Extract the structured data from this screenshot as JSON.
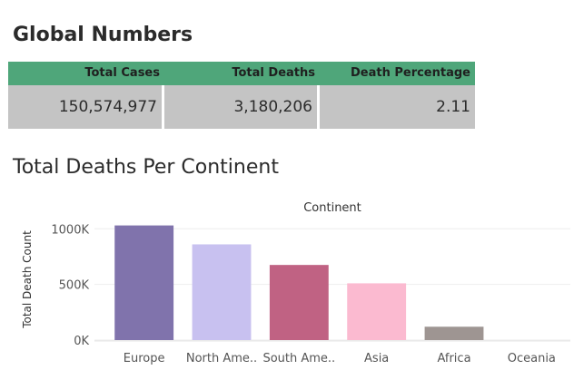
{
  "dashboard": {
    "title": "Global Numbers",
    "kpi": {
      "headers": [
        "Total Cases",
        "Total Deaths",
        "Death Percentage"
      ],
      "values": [
        "150,574,977",
        "3,180,206",
        "2.11"
      ]
    },
    "chart_title": "Total Deaths Per Continent"
  },
  "chart_data": {
    "type": "bar",
    "title": "Total Deaths Per Continent",
    "column_header": "Continent",
    "ylabel": "Total Death Count",
    "xlabel": "",
    "categories": [
      "Europe",
      "North Ame..",
      "South Ame..",
      "Asia",
      "Africa",
      "Oceania"
    ],
    "values": [
      1030000,
      860000,
      675000,
      510000,
      120000,
      1000
    ],
    "colors": [
      "#8073ac",
      "#c8c1f0",
      "#c06283",
      "#fbbad0",
      "#9e9592",
      "#cccccc"
    ],
    "ylim": [
      0,
      1100000
    ],
    "yticks": [
      0,
      500000,
      1000000
    ],
    "ytick_labels": [
      "0K",
      "500K",
      "1000K"
    ],
    "grid": true
  }
}
